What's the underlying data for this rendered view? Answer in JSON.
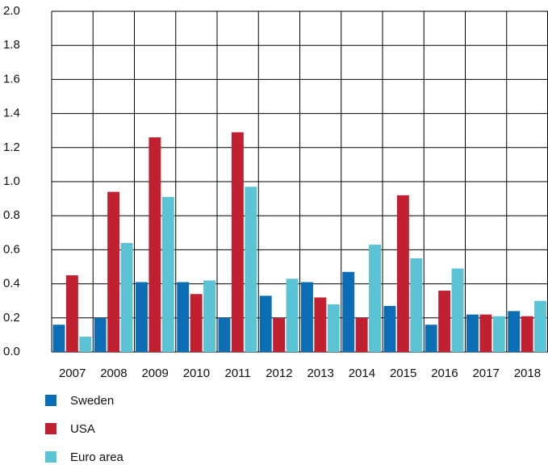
{
  "chart_data": {
    "type": "bar",
    "categories": [
      "2007",
      "2008",
      "2009",
      "2010",
      "2011",
      "2012",
      "2013",
      "2014",
      "2015",
      "2016",
      "2017",
      "2018"
    ],
    "series": [
      {
        "name": "Sweden",
        "color": "#0b6db3",
        "values": [
          0.16,
          0.2,
          0.41,
          0.41,
          0.2,
          0.33,
          0.41,
          0.47,
          0.27,
          0.16,
          0.22,
          0.24
        ]
      },
      {
        "name": "USA",
        "color": "#c0202f",
        "values": [
          0.45,
          0.94,
          1.26,
          0.34,
          1.29,
          0.2,
          0.32,
          0.2,
          0.92,
          0.36,
          0.22,
          0.21
        ]
      },
      {
        "name": "Euro area",
        "color": "#5bc4d4",
        "values": [
          0.09,
          0.64,
          0.91,
          0.42,
          0.97,
          0.43,
          0.28,
          0.63,
          0.55,
          0.49,
          0.21,
          0.3
        ]
      }
    ],
    "ylim": [
      0,
      2
    ],
    "yticks": [
      {
        "value": 0,
        "label": "0.0"
      },
      0.2,
      0.4,
      0.6,
      0.8,
      {
        "value": 1,
        "label": "1.0"
      },
      1.2,
      1.4,
      1.6,
      1.8,
      {
        "value": 2,
        "label": "2.0"
      }
    ],
    "grid": true
  }
}
